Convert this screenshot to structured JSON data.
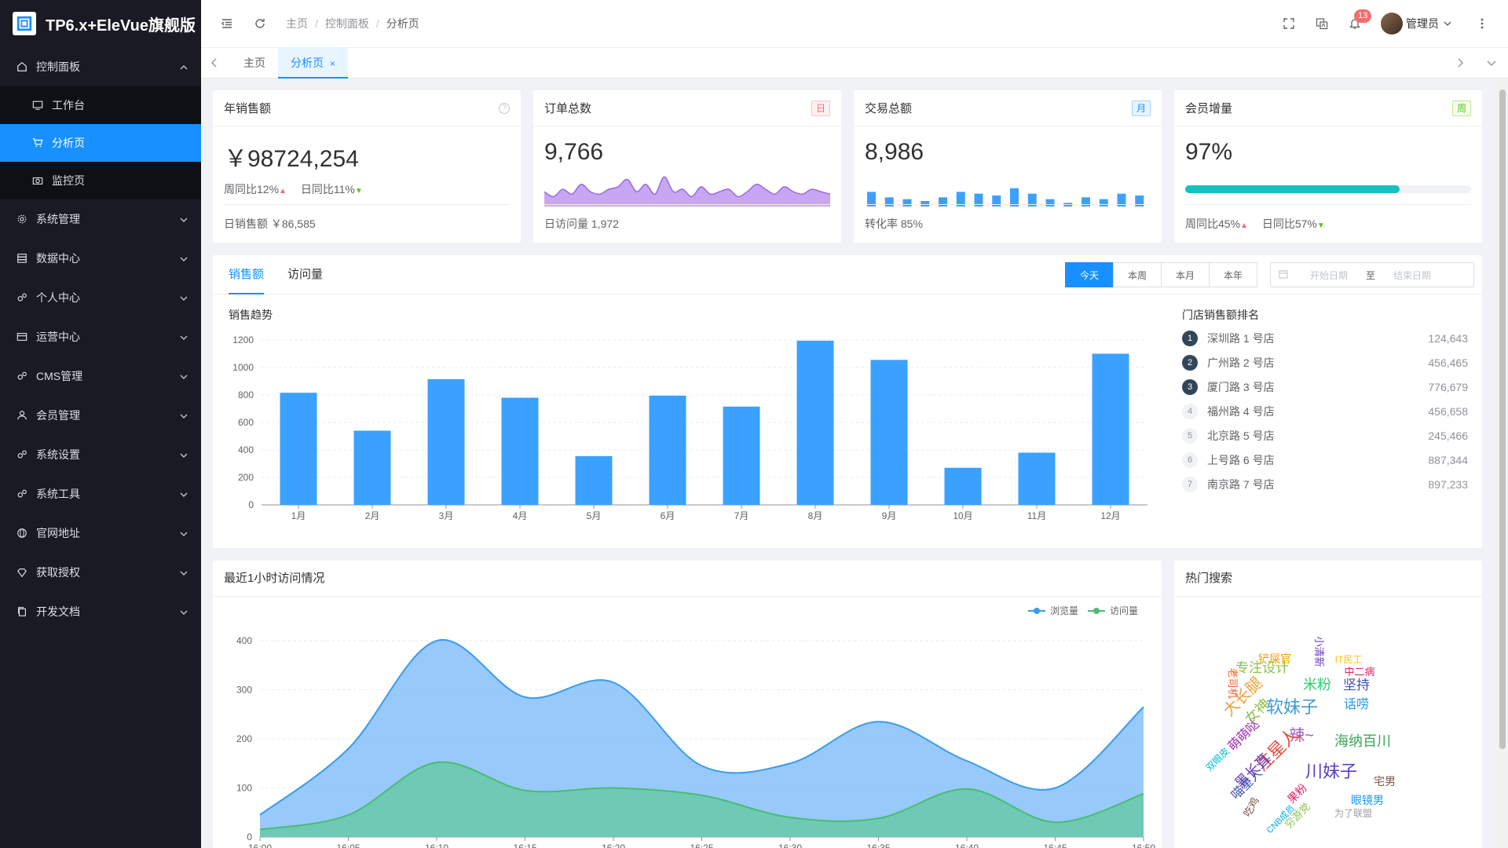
{
  "app": {
    "title": "TP6.x+EleVue旗舰版"
  },
  "sidebar": {
    "items": [
      {
        "label": "控制面板",
        "icon": "home-icon",
        "expanded": true
      },
      {
        "label": "工作台",
        "icon": "monitor-icon",
        "sub": true
      },
      {
        "label": "分析页",
        "icon": "cart-icon",
        "sub": true,
        "active": true
      },
      {
        "label": "监控页",
        "icon": "camera-icon",
        "sub": true
      },
      {
        "label": "系统管理",
        "icon": "gear-icon"
      },
      {
        "label": "数据中心",
        "icon": "database-icon"
      },
      {
        "label": "个人中心",
        "icon": "gears-icon"
      },
      {
        "label": "运营中心",
        "icon": "card-icon"
      },
      {
        "label": "CMS管理",
        "icon": "gears-icon"
      },
      {
        "label": "会员管理",
        "icon": "user-icon"
      },
      {
        "label": "系统设置",
        "icon": "gears-icon"
      },
      {
        "label": "系统工具",
        "icon": "gears-icon"
      },
      {
        "label": "官网地址",
        "icon": "globe-icon"
      },
      {
        "label": "获取授权",
        "icon": "diamond-icon"
      },
      {
        "label": "开发文档",
        "icon": "copy-icon"
      }
    ]
  },
  "header": {
    "breadcrumb": [
      "主页",
      "控制面板",
      "分析页"
    ],
    "notifications": "13",
    "user": "管理员"
  },
  "tabs": [
    {
      "label": "主页"
    },
    {
      "label": "分析页",
      "active": true
    }
  ],
  "stats": {
    "sales": {
      "title": "年销售额",
      "value": "￥98724,254",
      "week": "周同比12%",
      "day": "日同比11%",
      "foot": "日销售额 ￥86,585"
    },
    "orders": {
      "title": "订单总数",
      "tag": "日",
      "value": "9,766",
      "foot": "日访问量 1,972"
    },
    "trade": {
      "title": "交易总额",
      "tag": "月",
      "value": "8,986",
      "foot": "转化率 85%"
    },
    "members": {
      "title": "会员增量",
      "tag": "周",
      "value": "97%",
      "progress": 0.75,
      "week": "周同比45%",
      "day": "日同比57%"
    }
  },
  "sales_panel": {
    "tabs": [
      "销售额",
      "访问量"
    ],
    "ranges": [
      "今天",
      "本周",
      "本月",
      "本年"
    ],
    "start_placeholder": "开始日期",
    "to": "至",
    "end_placeholder": "结束日期",
    "chart_title": "销售趋势",
    "rank_title": "门店销售额排名",
    "ranking": [
      {
        "rank": "1",
        "name": "深圳路 1 号店",
        "value": "124,643"
      },
      {
        "rank": "2",
        "name": "广州路 2 号店",
        "value": "456,465"
      },
      {
        "rank": "3",
        "name": "厦门路 3 号店",
        "value": "776,679"
      },
      {
        "rank": "4",
        "name": "福州路 4 号店",
        "value": "456,658"
      },
      {
        "rank": "5",
        "name": "北京路 5 号店",
        "value": "245,466"
      },
      {
        "rank": "6",
        "name": "上号路 6 号店",
        "value": "887,344"
      },
      {
        "rank": "7",
        "name": "南京路 7 号店",
        "value": "897,233"
      }
    ]
  },
  "visits_panel": {
    "title": "最近1小时访问情况"
  },
  "hot_panel": {
    "title": "热门搜索"
  },
  "colors": {
    "accent": "#1890ff",
    "bar": "#3aa1ff",
    "visits": "#52c41a",
    "purple": "#b78bed"
  },
  "chart_data": [
    {
      "type": "bar",
      "title": "销售趋势",
      "categories": [
        "1月",
        "2月",
        "3月",
        "4月",
        "5月",
        "6月",
        "7月",
        "8月",
        "9月",
        "10月",
        "11月",
        "12月"
      ],
      "values": [
        816,
        540,
        915,
        780,
        355,
        795,
        715,
        1195,
        1055,
        270,
        380,
        1100
      ],
      "ylim": [
        0,
        1200
      ],
      "yticks": [
        0,
        200,
        400,
        600,
        800,
        1000,
        1200
      ]
    },
    {
      "type": "area",
      "title": "最近1小时访问情况",
      "x": [
        "16:00",
        "16:05",
        "16:10",
        "16:15",
        "16:20",
        "16:25",
        "16:30",
        "16:35",
        "16:40",
        "16:45",
        "16:50"
      ],
      "series": [
        {
          "name": "浏览量",
          "values": [
            45,
            180,
            400,
            285,
            315,
            145,
            150,
            235,
            155,
            100,
            265
          ]
        },
        {
          "name": "访问量",
          "values": [
            15,
            45,
            152,
            95,
            100,
            85,
            40,
            38,
            98,
            30,
            88
          ]
        }
      ],
      "ylim": [
        0,
        400
      ],
      "yticks": [
        0,
        100,
        200,
        300,
        400
      ],
      "legend": "top-right"
    },
    {
      "type": "area",
      "values": [
        6,
        4,
        7,
        5,
        9,
        6,
        5,
        7,
        8,
        11,
        6,
        9,
        5,
        12,
        6,
        7,
        4,
        8,
        5,
        6,
        7,
        4,
        6,
        9,
        7,
        5,
        8,
        6,
        5,
        7,
        6,
        5
      ]
    },
    {
      "type": "bar",
      "values": [
        8,
        5,
        4,
        3,
        5,
        8,
        7,
        6,
        10,
        7,
        4,
        2,
        5,
        4,
        7,
        6
      ]
    }
  ],
  "wordcloud": [
    {
      "t": "川妹子",
      "c": "#5b3cc4",
      "s": 22
    },
    {
      "t": "软妹子",
      "c": "#3a9bd5",
      "s": 22
    },
    {
      "t": "海纳百川",
      "c": "#3aa657",
      "s": 18
    },
    {
      "t": "辣~",
      "c": "#9b59b6",
      "s": 20
    },
    {
      "t": "注星人",
      "c": "#e74c3c",
      "s": 22
    },
    {
      "t": "专注设计",
      "c": "#8bc34a",
      "s": 17
    },
    {
      "t": "米粉",
      "c": "#2ecc71",
      "s": 18
    },
    {
      "t": "坚持",
      "c": "#3f51b5",
      "s": 17
    },
    {
      "t": "话唠",
      "c": "#2196f3",
      "s": 16
    },
    {
      "t": "大长腿",
      "c": "#e6a23c",
      "s": 20
    },
    {
      "t": "萌萌哒",
      "c": "#9c27b0",
      "s": 16
    },
    {
      "t": "女神",
      "c": "#8bc34a",
      "s": 18
    },
    {
      "t": "黑长直",
      "c": "#673ab7",
      "s": 18
    },
    {
      "t": "喵星人",
      "c": "#3f51b5",
      "s": 16
    },
    {
      "t": "眼镜男",
      "c": "#2196f3",
      "s": 14
    },
    {
      "t": "宅男",
      "c": "#795548",
      "s": 14
    },
    {
      "t": "铲屎官",
      "c": "#ff9800",
      "s": 14
    },
    {
      "t": "中二病",
      "c": "#e91e63",
      "s": 13
    },
    {
      "t": "IT民工",
      "c": "#ffc107",
      "s": 12
    },
    {
      "t": "小清新",
      "c": "#673ab7",
      "s": 13
    },
    {
      "t": "为了联盟",
      "c": "#9e9e9e",
      "s": 12
    },
    {
      "t": "果粉",
      "c": "#e91e63",
      "s": 14
    },
    {
      "t": "穷游党",
      "c": "#8bc34a",
      "s": 13
    },
    {
      "t": "吃鸡",
      "c": "#795548",
      "s": 13
    },
    {
      "t": "双眼皮",
      "c": "#00bcd4",
      "s": 12
    },
    {
      "t": "老司机",
      "c": "#ff5722",
      "s": 13
    },
    {
      "t": "CNB成员",
      "c": "#03a9f4",
      "s": 11
    }
  ]
}
